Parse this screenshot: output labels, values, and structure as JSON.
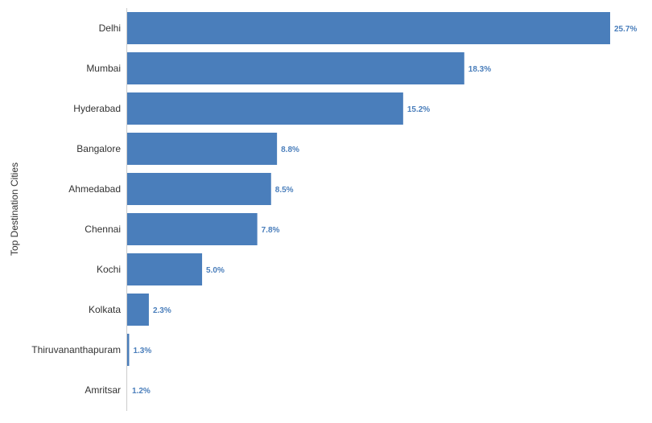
{
  "chart_data": {
    "type": "bar",
    "orientation": "horizontal",
    "title": "",
    "xlabel": "",
    "ylabel": "Top Destination Cities",
    "categories": [
      "Delhi",
      "Mumbai",
      "Hyderabad",
      "Bangalore",
      "Ahmedabad",
      "Chennai",
      "Kochi",
      "Kolkata",
      "Thiruvananthapuram",
      "Amritsar"
    ],
    "values": [
      25.7,
      18.3,
      15.2,
      8.8,
      8.5,
      7.8,
      5.0,
      2.3,
      1.3,
      1.2
    ],
    "value_labels": [
      "25.7%",
      "18.3%",
      "15.2%",
      "8.8%",
      "8.5%",
      "7.8%",
      "5.0%",
      "2.3%",
      "1.3%",
      "1.2%"
    ],
    "xlim": [
      1.2,
      25.7
    ],
    "grid": false,
    "legend": "none",
    "bar_color": "#4a7ebb",
    "label_color": "#4a7ebb"
  }
}
